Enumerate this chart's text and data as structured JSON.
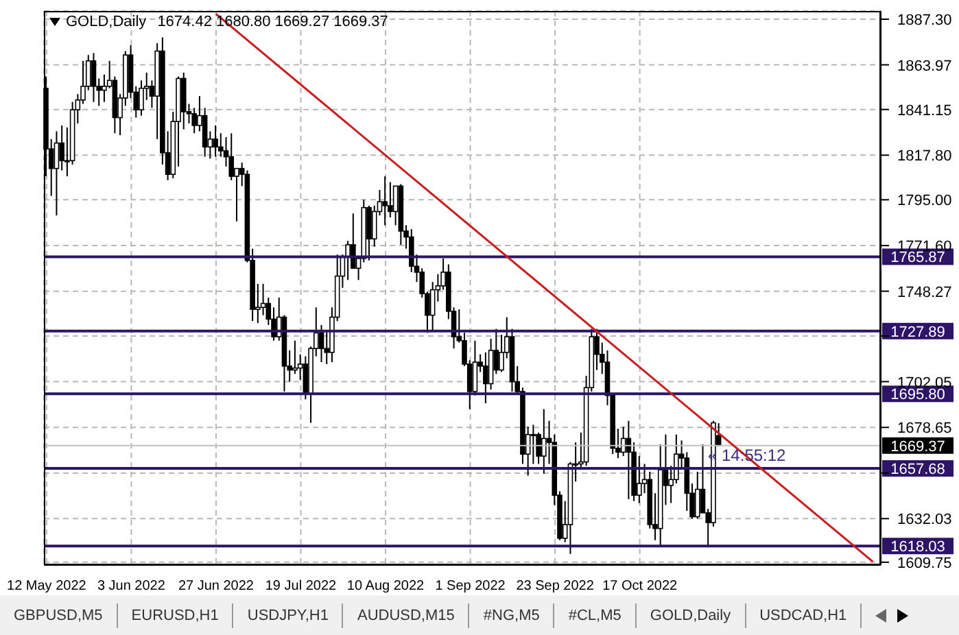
{
  "chart_data": {
    "type": "candlestick",
    "title": "GOLD,Daily",
    "subtitle": "1674.42 1680.80 1669.27 1669.37",
    "categories": [
      "12 May 2022",
      null,
      null,
      null,
      null,
      null,
      null,
      null,
      null,
      null,
      null,
      null,
      null,
      null,
      null,
      null,
      "3 Jun 2022",
      null,
      null,
      null,
      null,
      null,
      null,
      null,
      null,
      null,
      null,
      null,
      null,
      null,
      null,
      null,
      "27 Jun 2022",
      null,
      null,
      null,
      null,
      null,
      null,
      null,
      null,
      null,
      null,
      null,
      null,
      null,
      null,
      null,
      "19 Jul 2022",
      null,
      null,
      null,
      null,
      null,
      null,
      null,
      null,
      null,
      null,
      null,
      null,
      null,
      null,
      null,
      "10 Aug 2022",
      null,
      null,
      null,
      null,
      null,
      null,
      null,
      null,
      null,
      null,
      null,
      null,
      null,
      null,
      null,
      "1 Sep 2022",
      null,
      null,
      null,
      null,
      null,
      null,
      null,
      null,
      null,
      null,
      null,
      null,
      null,
      null,
      null,
      "23 Sep 2022",
      null,
      null,
      null,
      null,
      null,
      null,
      null,
      null,
      null,
      null,
      null,
      null,
      null,
      null,
      null,
      "17 Oct 2022",
      null,
      null,
      null,
      null,
      null,
      null,
      null,
      null,
      null,
      null,
      null,
      null,
      null,
      null,
      null,
      null,
      null,
      null,
      null,
      null,
      null,
      null,
      null,
      null,
      null,
      null,
      null,
      null,
      null,
      null,
      null,
      null,
      null,
      null,
      null,
      null,
      null,
      null,
      null,
      null,
      null,
      null,
      null,
      null,
      null
    ],
    "ohlc": [
      [
        1852,
        1858,
        1807,
        1821
      ],
      [
        1821,
        1826,
        1797,
        1811
      ],
      [
        1811,
        1830,
        1787,
        1824
      ],
      [
        1824,
        1833,
        1810,
        1815
      ],
      [
        1815,
        1832,
        1807,
        1815
      ],
      [
        1815,
        1845,
        1813,
        1841
      ],
      [
        1841,
        1849,
        1834,
        1846
      ],
      [
        1846,
        1866,
        1844,
        1853
      ],
      [
        1853,
        1869,
        1851,
        1866
      ],
      [
        1866,
        1870,
        1845,
        1853
      ],
      [
        1853,
        1857,
        1843,
        1851
      ],
      [
        1851,
        1859,
        1845,
        1853
      ],
      [
        1853,
        1866,
        1852,
        1856
      ],
      [
        1856,
        1858,
        1829,
        1837
      ],
      [
        1837,
        1849,
        1828,
        1847
      ],
      [
        1847,
        1871,
        1843,
        1869
      ],
      [
        1869,
        1874,
        1847,
        1850
      ],
      [
        1850,
        1853,
        1837,
        1841
      ],
      [
        1841,
        1856,
        1838,
        1852
      ],
      [
        1852,
        1860,
        1846,
        1853
      ],
      [
        1853,
        1856,
        1842,
        1848
      ],
      [
        1848,
        1875,
        1826,
        1871
      ],
      [
        1871,
        1878,
        1813,
        1819
      ],
      [
        1819,
        1830,
        1805,
        1808
      ],
      [
        1808,
        1840,
        1806,
        1835
      ],
      [
        1835,
        1858,
        1812,
        1857
      ],
      [
        1857,
        1860,
        1831,
        1840
      ],
      [
        1840,
        1844,
        1834,
        1839
      ],
      [
        1839,
        1842,
        1829,
        1833
      ],
      [
        1833,
        1848,
        1830,
        1838
      ],
      [
        1838,
        1842,
        1817,
        1822
      ],
      [
        1822,
        1830,
        1816,
        1826
      ],
      [
        1826,
        1833,
        1817,
        1822
      ],
      [
        1822,
        1829,
        1817,
        1820
      ],
      [
        1820,
        1827,
        1812,
        1817
      ],
      [
        1817,
        1829,
        1805,
        1807
      ],
      [
        1807,
        1811,
        1784,
        1811
      ],
      [
        1811,
        1814,
        1802,
        1808
      ],
      [
        1808,
        1810,
        1763,
        1764
      ],
      [
        1764,
        1770,
        1733,
        1739
      ],
      [
        1739,
        1752,
        1732,
        1740
      ],
      [
        1740,
        1752,
        1736,
        1742
      ],
      [
        1742,
        1745,
        1731,
        1734
      ],
      [
        1734,
        1740,
        1723,
        1725
      ],
      [
        1725,
        1745,
        1723,
        1735
      ],
      [
        1735,
        1736,
        1697,
        1710
      ],
      [
        1710,
        1718,
        1702,
        1708
      ],
      [
        1708,
        1723,
        1706,
        1709
      ],
      [
        1709,
        1716,
        1703,
        1711
      ],
      [
        1711,
        1715,
        1693,
        1696
      ],
      [
        1696,
        1720,
        1681,
        1719
      ],
      [
        1719,
        1740,
        1715,
        1727
      ],
      [
        1727,
        1731,
        1712,
        1719
      ],
      [
        1719,
        1728,
        1711,
        1717
      ],
      [
        1717,
        1740,
        1712,
        1735
      ],
      [
        1735,
        1767,
        1733,
        1756
      ],
      [
        1756,
        1767,
        1750,
        1766
      ],
      [
        1766,
        1774,
        1754,
        1772
      ],
      [
        1772,
        1788,
        1760,
        1760
      ],
      [
        1760,
        1766,
        1754,
        1765
      ],
      [
        1765,
        1795,
        1763,
        1791
      ],
      [
        1791,
        1792,
        1764,
        1775
      ],
      [
        1775,
        1792,
        1771,
        1789
      ],
      [
        1789,
        1800,
        1787,
        1794
      ],
      [
        1794,
        1807,
        1782,
        1792
      ],
      [
        1792,
        1804,
        1786,
        1789
      ],
      [
        1789,
        1802,
        1782,
        1802
      ],
      [
        1802,
        1803,
        1772,
        1779
      ],
      [
        1779,
        1782,
        1770,
        1776
      ],
      [
        1776,
        1780,
        1758,
        1761
      ],
      [
        1761,
        1767,
        1753,
        1758
      ],
      [
        1758,
        1760,
        1745,
        1747
      ],
      [
        1747,
        1748,
        1727,
        1736
      ],
      [
        1736,
        1753,
        1728,
        1749
      ],
      [
        1749,
        1757,
        1743,
        1751
      ],
      [
        1751,
        1765,
        1749,
        1758
      ],
      [
        1758,
        1762,
        1734,
        1738
      ],
      [
        1738,
        1740,
        1719,
        1725
      ],
      [
        1725,
        1739,
        1722,
        1723
      ],
      [
        1723,
        1727,
        1710,
        1711
      ],
      [
        1711,
        1713,
        1688,
        1697
      ],
      [
        1697,
        1723,
        1695,
        1712
      ],
      [
        1712,
        1716,
        1707,
        1710
      ],
      [
        1710,
        1717,
        1691,
        1701
      ],
      [
        1701,
        1724,
        1698,
        1718
      ],
      [
        1718,
        1729,
        1706,
        1708
      ],
      [
        1708,
        1726,
        1707,
        1717
      ],
      [
        1717,
        1735,
        1714,
        1725
      ],
      [
        1725,
        1729,
        1697,
        1702
      ],
      [
        1702,
        1710,
        1696,
        1697
      ],
      [
        1697,
        1699,
        1660,
        1665
      ],
      [
        1665,
        1679,
        1654,
        1675
      ],
      [
        1675,
        1680,
        1660,
        1675
      ],
      [
        1675,
        1676,
        1660,
        1664
      ],
      [
        1664,
        1688,
        1655,
        1673
      ],
      [
        1673,
        1682,
        1660,
        1671
      ],
      [
        1671,
        1675,
        1639,
        1644
      ],
      [
        1644,
        1646,
        1621,
        1622
      ],
      [
        1622,
        1641,
        1620,
        1629
      ],
      [
        1629,
        1661,
        1614,
        1660
      ],
      [
        1660,
        1671,
        1651,
        1660
      ],
      [
        1660,
        1676,
        1657,
        1661
      ],
      [
        1661,
        1705,
        1659,
        1699
      ],
      [
        1699,
        1729,
        1697,
        1725
      ],
      [
        1725,
        1729,
        1708,
        1716
      ],
      [
        1716,
        1722,
        1706,
        1712
      ],
      [
        1712,
        1718,
        1690,
        1695
      ],
      [
        1695,
        1696,
        1665,
        1668
      ],
      [
        1668,
        1678,
        1663,
        1666
      ],
      [
        1666,
        1679,
        1664,
        1673
      ],
      [
        1673,
        1682,
        1642,
        1666
      ],
      [
        1666,
        1671,
        1641,
        1644
      ],
      [
        1644,
        1664,
        1640,
        1650
      ],
      [
        1650,
        1660,
        1645,
        1652
      ],
      [
        1652,
        1656,
        1627,
        1629
      ],
      [
        1629,
        1645,
        1621,
        1627
      ],
      [
        1627,
        1670,
        1618,
        1657
      ],
      [
        1657,
        1675,
        1639,
        1649
      ],
      [
        1649,
        1659,
        1640,
        1652
      ],
      [
        1652,
        1675,
        1650,
        1665
      ],
      [
        1665,
        1672,
        1657,
        1663
      ],
      [
        1663,
        1666,
        1636,
        1645
      ],
      [
        1645,
        1650,
        1632,
        1633
      ],
      [
        1633,
        1656,
        1632,
        1647
      ],
      [
        1647,
        1670,
        1635,
        1635
      ],
      [
        1635,
        1637,
        1618,
        1630
      ],
      [
        1630,
        1682,
        1628,
        1681
      ],
      [
        1674.42,
        1680.8,
        1669.27,
        1669.37
      ],
      null,
      null,
      null,
      null,
      null,
      null,
      null,
      null,
      null,
      null,
      null,
      null,
      null,
      null,
      null,
      null,
      null,
      null,
      null,
      null,
      null,
      null,
      null,
      null,
      null,
      null,
      null,
      null,
      null,
      null
    ],
    "series": [
      {
        "type": "line",
        "color": "#c81e1e",
        "values": [
          null,
          null,
          null,
          null,
          null,
          null,
          null,
          null,
          null,
          null,
          null,
          null,
          null,
          null,
          null,
          null,
          null,
          null,
          null,
          null,
          null,
          null,
          null,
          null,
          null,
          null,
          null,
          null,
          null,
          null,
          null,
          null,
          1890,
          null,
          null,
          null,
          null,
          null,
          null,
          null,
          null,
          null,
          null,
          null,
          null,
          null,
          null,
          null,
          null,
          null,
          null,
          null,
          null,
          null,
          null,
          null,
          null,
          null,
          null,
          null,
          null,
          null,
          null,
          null,
          null,
          null,
          null,
          null,
          null,
          null,
          null,
          null,
          null,
          null,
          null,
          null,
          null,
          null,
          null,
          null,
          null,
          null,
          null,
          null,
          null,
          null,
          null,
          null,
          null,
          null,
          null,
          null,
          null,
          null,
          null,
          null,
          null,
          null,
          null,
          null,
          null,
          null,
          null,
          null,
          null,
          null,
          null,
          null,
          null,
          null,
          null,
          null,
          null,
          null,
          null,
          null,
          null,
          null,
          null,
          null,
          null,
          null,
          null,
          null,
          null,
          null,
          null,
          null,
          null,
          null,
          null,
          null,
          null,
          null,
          null,
          null,
          null,
          null,
          null,
          null,
          null,
          null,
          null,
          null,
          null,
          null,
          null,
          null,
          null,
          null,
          null,
          null,
          null,
          null,
          null,
          null,
          1610,
          null
        ]
      }
    ],
    "ylim": [
      1608.3,
      1891.5
    ],
    "yticks": [
      {
        "value": 1609.75,
        "label": "1609.75"
      },
      {
        "value": 1632.03,
        "label": "1632.03"
      },
      {
        "value": 1655.3,
        "label": null
      },
      {
        "value": 1678.65,
        "label": "1678.65"
      },
      {
        "value": 1702.05,
        "label": "1702.05"
      },
      {
        "value": 1725.4,
        "label": null
      },
      {
        "value": 1748.27,
        "label": "1748.27"
      },
      {
        "value": 1771.6,
        "label": "1771.60"
      },
      {
        "value": 1795,
        "label": "1795.00"
      },
      {
        "value": 1817.8,
        "label": "1817.80"
      },
      {
        "value": 1841.15,
        "label": "1841.15"
      },
      {
        "value": 1863.97,
        "label": "1863.97"
      },
      {
        "value": 1887.3,
        "label": "1887.30"
      }
    ],
    "grid": true,
    "ref_lines": [
      {
        "axis": "y",
        "value": 1765.87,
        "label": "1765.87",
        "color": "#2e1466"
      },
      {
        "axis": "y",
        "value": 1727.89,
        "label": "1727.89",
        "color": "#2e1466"
      },
      {
        "axis": "y",
        "value": 1695.8,
        "label": "1695.80",
        "color": "#2e1466"
      },
      {
        "axis": "y",
        "value": 1657.68,
        "label": "1657.68",
        "color": "#2e1466"
      },
      {
        "axis": "y",
        "value": 1618.03,
        "label": "1618.03",
        "color": "#2e1466"
      },
      {
        "axis": "y",
        "value": 1669.37,
        "label": "1669.37",
        "color": "#c0c0c0"
      }
    ],
    "annotations": [
      "« 14:55:12",
      "GBPUSD,M5",
      "EURUSD,H1",
      "USDJPY,H1",
      "AUDUSD,M15",
      "#NG,M5",
      "#CL,M5",
      "GOLD,Daily",
      "USDCAD,H1"
    ]
  }
}
